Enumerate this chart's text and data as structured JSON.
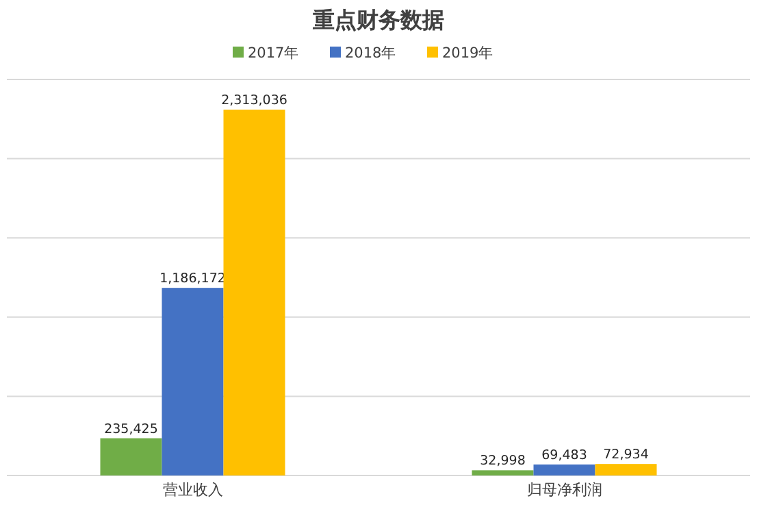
{
  "chart_data": {
    "type": "bar",
    "title": "重点财务数据",
    "categories": [
      "营业收入",
      "归母净利润"
    ],
    "series": [
      {
        "name": "2017年",
        "color": "#70ad47",
        "values": [
          235425,
          32998
        ],
        "value_labels": [
          "235,425",
          "32,998"
        ]
      },
      {
        "name": "2018年",
        "color": "#4472c4",
        "values": [
          1186172,
          69483
        ],
        "value_labels": [
          "1,186,172",
          "69,483"
        ]
      },
      {
        "name": "2019年",
        "color": "#ffc000",
        "values": [
          2313036,
          72934
        ],
        "value_labels": [
          "2,313,036",
          "72,934"
        ]
      }
    ],
    "grid": "y",
    "legend": "top",
    "tick_labels": "x"
  }
}
